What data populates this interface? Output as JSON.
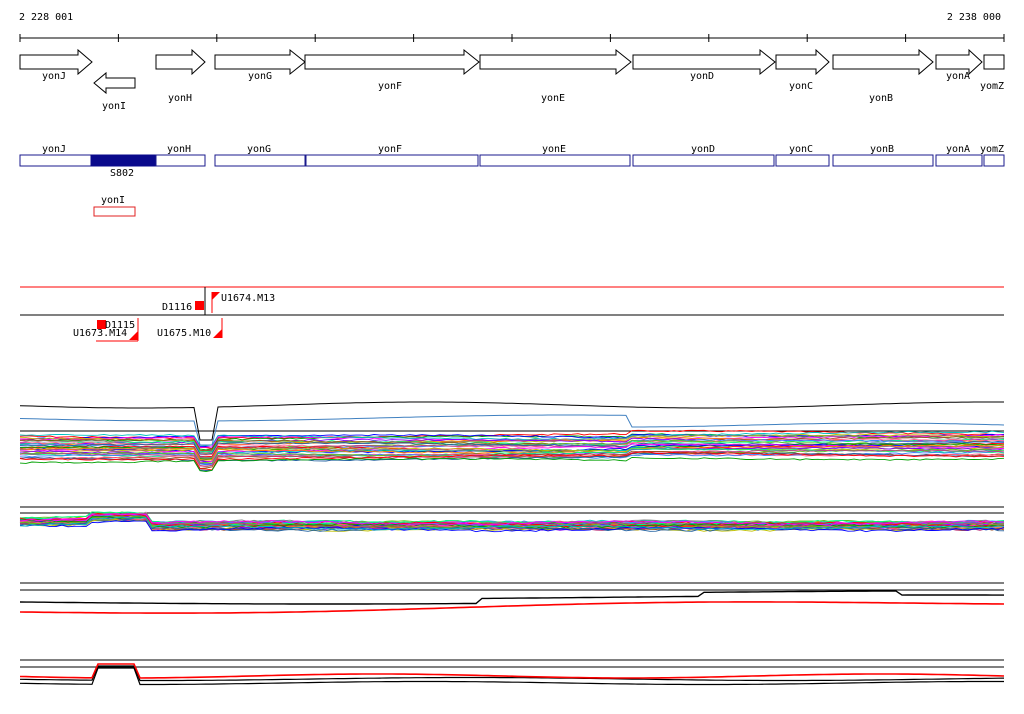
{
  "coords": {
    "start": "2 228 001",
    "end": "2 238 000"
  },
  "genes": [
    {
      "label": "yonJ"
    },
    {
      "label": "yonI"
    },
    {
      "label": "yonH"
    },
    {
      "label": "yonG"
    },
    {
      "label": "yonF"
    },
    {
      "label": "yonE"
    },
    {
      "label": "yonD"
    },
    {
      "label": "yonC"
    },
    {
      "label": "yonB"
    },
    {
      "label": "yonA"
    },
    {
      "label": "yomZ"
    }
  ],
  "operons": [
    {
      "label": "yonJ"
    },
    {
      "label": "yonH"
    },
    {
      "label": "yonG"
    },
    {
      "label": "yonF"
    },
    {
      "label": "yonE"
    },
    {
      "label": "yonD"
    },
    {
      "label": "yonC"
    },
    {
      "label": "yonB"
    },
    {
      "label": "yonA"
    },
    {
      "label": "yomZ"
    }
  ],
  "operon_block": {
    "label": "S802"
  },
  "red_feature": {
    "label": "yonI"
  },
  "markers": [
    {
      "label": "D1116"
    },
    {
      "label": "U1674.M13"
    },
    {
      "label": "D1115"
    },
    {
      "label": "U1673.M14"
    },
    {
      "label": "U1675.M10"
    }
  ],
  "colors": {
    "gene_outline": "#000000",
    "operon_outline": "#1a1a8c",
    "operon_block": "#0a0a8c",
    "red": "#ff0000"
  }
}
